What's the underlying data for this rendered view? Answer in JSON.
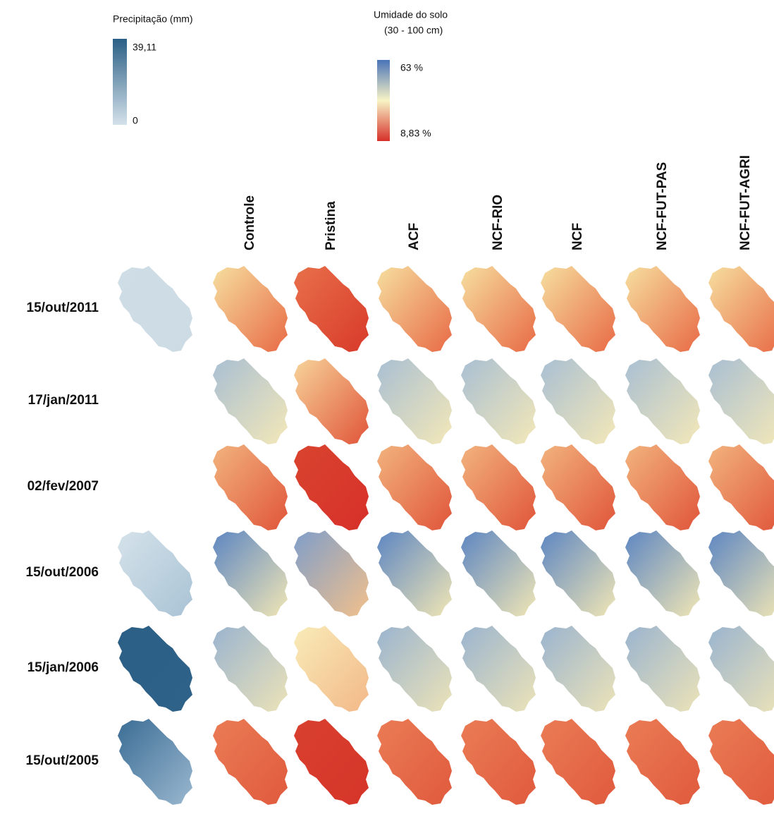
{
  "legends": {
    "precipitation": {
      "title": "Precipitação (mm)",
      "max": "39,11",
      "min": "0"
    },
    "soil_moisture": {
      "title": "Umidade do solo",
      "subtitle": "(30 - 100 cm)",
      "max": "63 %",
      "min": "8,83 %"
    }
  },
  "columns": [
    "Controle",
    "Pristina",
    "ACF",
    "NCF-RIO",
    "NCF",
    "NCF-FUT-PAS",
    "NCF-FUT-AGRI"
  ],
  "rows": [
    "15/out/2011",
    "17/jan/2011",
    "02/fev/2007",
    "15/out/2006",
    "15/jan/2006",
    "15/out/2005"
  ]
}
